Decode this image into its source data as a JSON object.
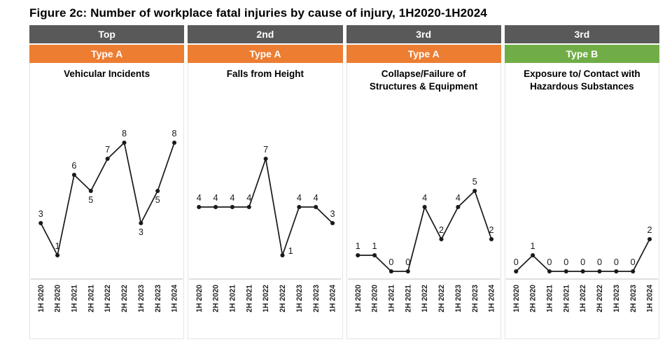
{
  "title": "Figure 2c: Number of workplace fatal injuries by cause of injury, 1H2020-1H2024",
  "colors": {
    "rank_header_bg": "#595959",
    "type_a_bg": "#ED7D31",
    "type_b_bg": "#70AD47",
    "line": "#1a1a1a",
    "axis": "#bfbfbf"
  },
  "chart_data": [
    {
      "type": "line",
      "rank": "Top",
      "injury_type": "Type A",
      "title": "Vehicular Incidents",
      "categories": [
        "1H 2020",
        "2H 2020",
        "1H 2021",
        "2H 2021",
        "1H 2022",
        "2H 2022",
        "1H 2023",
        "2H 2023",
        "1H 2024"
      ],
      "values": [
        3,
        1,
        6,
        5,
        7,
        8,
        3,
        5,
        8
      ],
      "label_side": [
        "above",
        "above",
        "above",
        "below",
        "above",
        "above",
        "below",
        "below",
        "above"
      ],
      "ylim": [
        0,
        9
      ],
      "xlabel": "",
      "ylabel": "",
      "legend": "none",
      "grid": "off"
    },
    {
      "type": "line",
      "rank": "2nd",
      "injury_type": "Type A",
      "title": "Falls from Height",
      "categories": [
        "1H 2020",
        "2H 2020",
        "1H 2021",
        "2H 2021",
        "1H 2022",
        "2H 2022",
        "1H 2023",
        "2H 2023",
        "1H 2024"
      ],
      "values": [
        4,
        4,
        4,
        4,
        7,
        1,
        4,
        4,
        3
      ],
      "label_side": [
        "above",
        "above",
        "above",
        "above",
        "above",
        "right",
        "above",
        "above",
        "above"
      ],
      "ylim": [
        0,
        9
      ],
      "xlabel": "",
      "ylabel": "",
      "legend": "none",
      "grid": "off"
    },
    {
      "type": "line",
      "rank": "3rd",
      "injury_type": "Type A",
      "title": "Collapse/Failure of Structures & Equipment",
      "categories": [
        "1H 2020",
        "2H 2020",
        "1H 2021",
        "2H 2021",
        "1H 2022",
        "2H 2022",
        "1H 2023",
        "2H 2023",
        "1H 2024"
      ],
      "values": [
        1,
        1,
        0,
        0,
        4,
        2,
        4,
        5,
        2
      ],
      "label_side": [
        "above",
        "above",
        "above",
        "above",
        "above",
        "above",
        "above",
        "above",
        "above"
      ],
      "ylim": [
        0,
        9
      ],
      "xlabel": "",
      "ylabel": "",
      "legend": "none",
      "grid": "off"
    },
    {
      "type": "line",
      "rank": "3rd",
      "injury_type": "Type B",
      "title": "Exposure to/ Contact with Hazardous Substances",
      "categories": [
        "1H 2020",
        "2H 2020",
        "1H 2021",
        "2H 2021",
        "1H 2022",
        "2H 2022",
        "1H 2023",
        "2H 2023",
        "1H 2024"
      ],
      "values": [
        0,
        1,
        0,
        0,
        0,
        0,
        0,
        0,
        2
      ],
      "label_side": [
        "above",
        "above",
        "above",
        "above",
        "above",
        "above",
        "above",
        "above",
        "above"
      ],
      "ylim": [
        0,
        9
      ],
      "xlabel": "",
      "ylabel": "",
      "legend": "none",
      "grid": "off"
    }
  ]
}
